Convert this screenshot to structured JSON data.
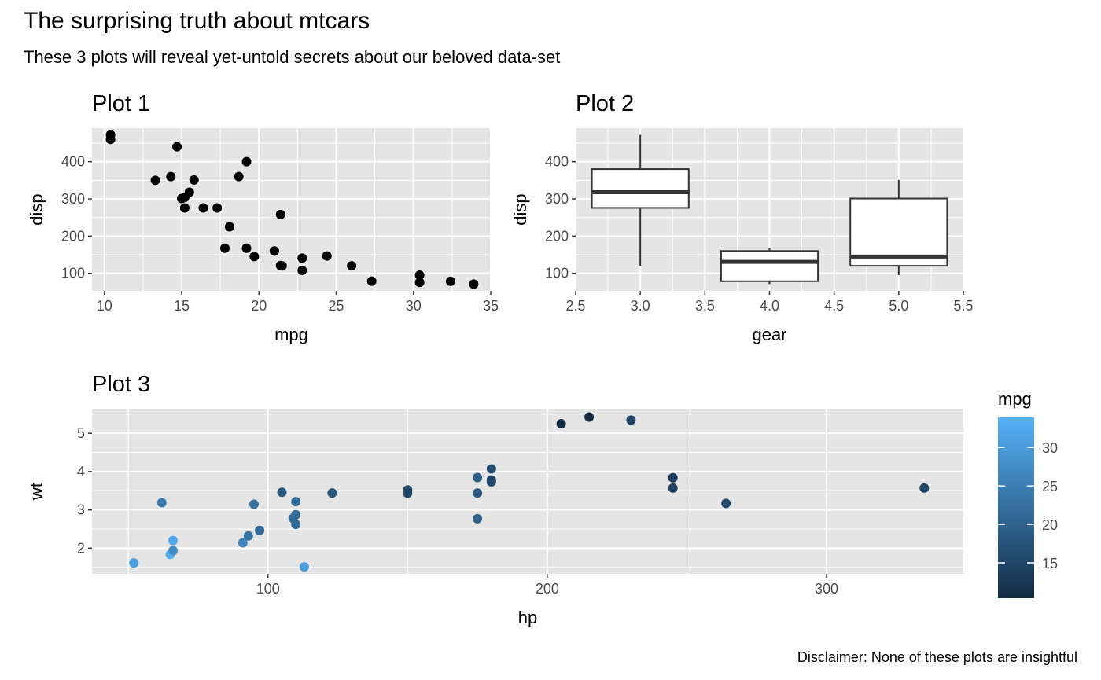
{
  "title": "The surprising truth about mtcars",
  "subtitle": "These 3 plots will reveal yet-untold secrets about our beloved data-set",
  "caption": "Disclaimer: None of these plots are insightful",
  "colors": {
    "panel_bg": "#e5e5e5",
    "grid": "#ffffff",
    "point": "#000000",
    "gradient_low": "#132b43",
    "gradient_high": "#56b1f7"
  },
  "chart_data": [
    {
      "type": "scatter",
      "title": "Plot 1",
      "xlabel": "mpg",
      "ylabel": "disp",
      "xlim": [
        9.2,
        35
      ],
      "ylim": [
        53,
        490
      ],
      "xticks": [
        10,
        15,
        20,
        25,
        30,
        35
      ],
      "yticks": [
        100,
        200,
        300,
        400
      ],
      "points": [
        [
          21.0,
          160
        ],
        [
          21.0,
          160
        ],
        [
          22.8,
          108
        ],
        [
          21.4,
          258
        ],
        [
          18.7,
          360
        ],
        [
          18.1,
          225
        ],
        [
          14.3,
          360
        ],
        [
          24.4,
          146.7
        ],
        [
          22.8,
          140.8
        ],
        [
          19.2,
          167.6
        ],
        [
          17.8,
          167.6
        ],
        [
          16.4,
          275.8
        ],
        [
          17.3,
          275.8
        ],
        [
          15.2,
          275.8
        ],
        [
          10.4,
          472
        ],
        [
          10.4,
          460
        ],
        [
          14.7,
          440
        ],
        [
          32.4,
          78.7
        ],
        [
          30.4,
          75.7
        ],
        [
          33.9,
          71.1
        ],
        [
          21.5,
          120.1
        ],
        [
          15.5,
          318
        ],
        [
          15.2,
          304
        ],
        [
          13.3,
          350
        ],
        [
          19.2,
          400
        ],
        [
          27.3,
          79
        ],
        [
          26.0,
          120.3
        ],
        [
          30.4,
          95.1
        ],
        [
          15.8,
          351
        ],
        [
          19.7,
          145
        ],
        [
          15.0,
          301
        ],
        [
          21.4,
          121
        ]
      ]
    },
    {
      "type": "box",
      "title": "Plot 2",
      "xlabel": "gear",
      "ylabel": "disp",
      "xlim": [
        2.5,
        5.5
      ],
      "ylim": [
        53,
        490
      ],
      "xticks": [
        "2.5",
        "3.0",
        "3.5",
        "4.0",
        "4.5",
        "5.0",
        "5.5"
      ],
      "yticks": [
        100,
        200,
        300,
        400
      ],
      "boxes": [
        {
          "x": 3,
          "min": 120.1,
          "q1": 275.8,
          "median": 318,
          "q3": 380,
          "max": 472
        },
        {
          "x": 4,
          "min": 71.1,
          "q1": 78.85,
          "median": 130.9,
          "q3": 160,
          "max": 167.6
        },
        {
          "x": 5,
          "min": 95.1,
          "q1": 120.3,
          "median": 145,
          "q3": 301,
          "max": 351
        }
      ]
    },
    {
      "type": "scatter",
      "title": "Plot 3",
      "xlabel": "hp",
      "ylabel": "wt",
      "color_by": "mpg",
      "legend_title": "mpg",
      "legend_ticks": [
        15,
        20,
        25,
        30
      ],
      "color_range": [
        10.4,
        33.9
      ],
      "xlim": [
        37,
        349
      ],
      "ylim": [
        1.33,
        5.64
      ],
      "xticks": [
        100,
        200,
        300
      ],
      "yticks": [
        2,
        3,
        4,
        5
      ],
      "points": [
        [
          110,
          2.62,
          21.0
        ],
        [
          110,
          2.875,
          21.0
        ],
        [
          93,
          2.32,
          22.8
        ],
        [
          110,
          3.215,
          21.4
        ],
        [
          175,
          3.44,
          18.7
        ],
        [
          105,
          3.46,
          18.1
        ],
        [
          245,
          3.57,
          14.3
        ],
        [
          62,
          3.19,
          24.4
        ],
        [
          95,
          3.15,
          22.8
        ],
        [
          123,
          3.44,
          19.2
        ],
        [
          123,
          3.44,
          17.8
        ],
        [
          180,
          4.07,
          16.4
        ],
        [
          180,
          3.73,
          17.3
        ],
        [
          180,
          3.78,
          15.2
        ],
        [
          205,
          5.25,
          10.4
        ],
        [
          215,
          5.424,
          10.4
        ],
        [
          230,
          5.345,
          14.7
        ],
        [
          66,
          2.2,
          32.4
        ],
        [
          52,
          1.615,
          30.4
        ],
        [
          65,
          1.835,
          33.9
        ],
        [
          97,
          2.465,
          21.5
        ],
        [
          150,
          3.52,
          15.5
        ],
        [
          150,
          3.435,
          15.2
        ],
        [
          245,
          3.84,
          13.3
        ],
        [
          175,
          3.845,
          19.2
        ],
        [
          66,
          1.935,
          27.3
        ],
        [
          91,
          2.14,
          26.0
        ],
        [
          113,
          1.513,
          30.4
        ],
        [
          264,
          3.17,
          15.8
        ],
        [
          175,
          2.77,
          19.7
        ],
        [
          335,
          3.57,
          15.0
        ],
        [
          109,
          2.78,
          21.4
        ]
      ]
    }
  ]
}
